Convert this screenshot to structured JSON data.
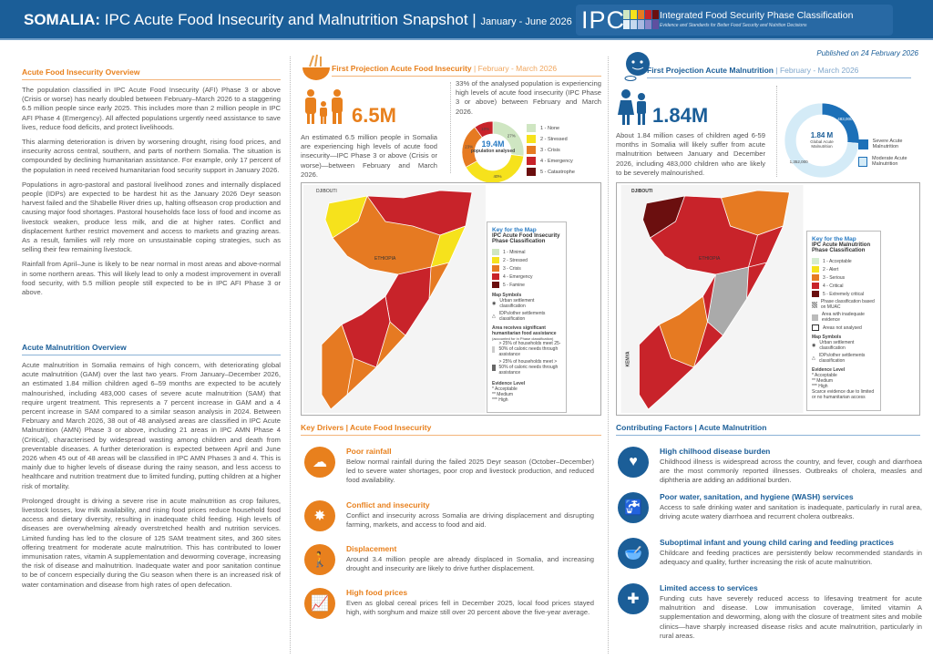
{
  "header": {
    "country": "SOMALIA:",
    "title": "IPC Acute Food Insecurity and Malnutrition Snapshot",
    "period": "January - June 2026",
    "logo_text": "IPC",
    "logo_title": "Integrated Food Security Phase Classification",
    "logo_subtitle": "Evidence and Standards for Better Food Security and Nutrition Decisions",
    "published": "Published on 24 February 2026",
    "colors": {
      "banner": "#1b5e98",
      "accent_orange": "#e8801d",
      "accent_blue": "#1b5e98"
    }
  },
  "afi_overview": {
    "heading": "Acute Food Insecurity Overview",
    "paragraphs": [
      "The population classified in IPC Acute Food Insecurity (AFI) Phase 3 or above (Crisis or worse) has nearly doubled between February–March 2026 to a staggering 6.5 million people since early 2025. This includes more than 2 million people in IPC AFI Phase 4 (Emergency). All affected populations urgently need assistance to save lives, reduce food deficits, and protect livelihoods.",
      "This alarming deterioration is driven by worsening drought, rising food prices, and insecurity across central, southern, and parts of northern Somalia. The situation is compounded by declining humanitarian assistance. For example, only 17 percent of the population in need received humanitarian food security support in January 2026.",
      "Populations in agro-pastoral and pastoral livelihood zones and internally displaced people (IDPs) are expected to be hardest hit as the January 2026 Deyr season harvest failed and the Shabelle River dries up, halting offseason crop production and causing major food shortages. Pastoral households face loss of food and income as livestock weaken, produce less milk, and die at higher rates. Conflict and displacement further restrict movement and access to markets and grazing areas. As a result, families will rely more on unsustainable coping strategies, such as selling their few remaining livestock.",
      "Rainfall from April–June is likely to be near normal in most areas and above-normal in some northern areas. This will likely lead to only a modest improvement in overall food security, with 5.5 million people still expected to be in IPC AFI Phase 3 or above."
    ]
  },
  "amn_overview": {
    "heading": "Acute Malnutrition Overview",
    "paragraphs": [
      "Acute malnutrition in Somalia remains of high concern, with deteriorating global acute malnutrition (GAM) over the last two years. From January–December 2026, an estimated 1.84 million children aged 6–59 months are expected to be acutely malnourished, including 483,000 cases of severe acute malnutrition (SAM) that require urgent treatment. This represents a 7 percent increase in GAM and a 4 percent increase in SAM compared to a similar season analysis in 2024. Between February and March 2026, 38 out of 48 analysed areas are classified in IPC Acute Malnutrition (AMN) Phase 3 or above, including 21 areas in IPC AMN Phase 4 (Critical), characterised by widespread wasting among children and death from preventable diseases. A further deterioration is expected between April and June 2026 when 45 out of 48 areas will be classified in IPC AMN Phases 3 and 4. This is mainly due to higher levels of disease during the rainy season, and less access to healthcare and nutrition treatment due to limited funding, putting children at a higher risk of mortality.",
      "Prolonged drought is driving a severe rise in acute malnutrition as crop failures, livestock losses, low milk availability, and rising food prices reduce household food access and dietary diversity, resulting in inadequate child feeding. High levels of diseases are overwhelming already overstretched health and nutrition services. Limited funding has led to the closure of 125 SAM treatment sites, and 360 sites offering treatment for moderate acute malnutrition. This has contributed to lower immunisation rates, vitamin A supplementation and deworming coverage, increasing the risk of disease and malnutrition. Inadequate water and poor sanitation continue to be of concern especially during the Gu season when there is an increased risk of water contamination and disease from high rates of open defecation."
    ]
  },
  "afi_projection": {
    "heading": "First Projection Acute Food Insecurity",
    "period": "February - March 2026",
    "figure": "6.5M",
    "text": "An estimated 6.5 million people in Somalia are experiencing high levels of acute food insecurity—IPC Phase 3 or above (Crisis or worse)—between February and March 2026.",
    "share_text": "33% of the analysed population is experiencing high levels of acute food insecurity (IPC Phase 3 or above) between February and March 2026.",
    "donut_center": "19.4M",
    "donut_center_sub": "population analysed",
    "phases": [
      {
        "label": "1 - None",
        "value": 27,
        "pct": "27%",
        "color": "#cfe6c2"
      },
      {
        "label": "2 - Stressed",
        "value": 40,
        "pct": "40%",
        "color": "#f6e21c"
      },
      {
        "label": "3 - Crisis",
        "value": 23,
        "pct": "23%",
        "color": "#e67a22"
      },
      {
        "label": "4 - Emergency",
        "value": 10,
        "pct": "10%",
        "color": "#c8232a"
      },
      {
        "label": "5 - Catastrophe",
        "value": 0,
        "pct": "",
        "color": "#6b0f0f"
      }
    ],
    "map_key": {
      "title": "Key for the Map",
      "subtitle": "IPC Acute Food Insecurity Phase Classification",
      "phases": [
        "1 - Minimal",
        "2 - Stressed",
        "3 - Crisis",
        "4 - Emergency",
        "5 - Famine"
      ],
      "symbols_title": "Map Symbols",
      "symbols": [
        "Urban settlement classification",
        "IDPs/other settlements classification"
      ],
      "assist_title": "Area receives significant humanitarian food assistance",
      "assist_sub": "(accounted for in Phase classification)",
      "assist": [
        "> 25% of households meet 25-50% of caloric needs through assistance",
        "> 25% of households meet > 50% of caloric needs through assistance"
      ],
      "evidence_title": "Evidence Level",
      "evidence": [
        "* Acceptable",
        "** Medium",
        "*** High"
      ]
    },
    "map_labels": [
      "DJIBOUTI",
      "ETHIOPIA",
      "KENYA"
    ]
  },
  "amn_projection": {
    "heading": "First Projection Acute Malnutrition",
    "period": "February - March 2026",
    "figure": "1.84M",
    "text": "About 1.84 million cases of children aged 6-59 months in Somalia will likely suffer from acute malnutrition between January and December 2026, including 483,000 children who are likely to be severely malnourished.",
    "donut_center": "1.84 M",
    "donut_center_sub": "Global Acute Malnutrition",
    "segments": [
      {
        "label": "Severe Acute Malnutrition",
        "value": 483000,
        "display": "483,000",
        "color": "#1c70b8"
      },
      {
        "label": "Moderate Acute Malnutrition",
        "value": 1352000,
        "display": "1,352,000",
        "color": "#d4ebf7"
      }
    ],
    "map_key": {
      "title": "Key for the Map",
      "subtitle": "IPC Acute Malnutrition Phase Classification",
      "phases": [
        "1 - Acceptable",
        "2 - Alert",
        "3 - Serious",
        "4 - Critical",
        "5 - Extremely critical"
      ],
      "extra": [
        "Phase classification based on MUAC",
        "Area with inadequate evidence",
        "Areas not analysed"
      ],
      "symbols_title": "Map Symbols",
      "symbols": [
        "Urban settlement classification",
        "IDPs/other settlements classification"
      ],
      "evidence_title": "Evidence Level",
      "evidence": [
        "* Acceptable",
        "** Medium",
        "*** High",
        "Scarce evidence due to limited or no humanitarian access"
      ]
    },
    "map_labels": [
      "DJIBOUTI",
      "ETHIOPIA",
      "KENYA"
    ]
  },
  "key_drivers": {
    "heading": "Key Drivers | Acute Food Insecurity",
    "items": [
      {
        "title": "Poor rainfall",
        "text": "Below normal rainfall during the failed 2025 Deyr season (October–December) led to severe water shortages, poor crop and livestock production, and reduced food availability.",
        "icon": "rain-cloud-icon"
      },
      {
        "title": "Conflict and insecurity",
        "text": "Conflict and insecurity across Somalia are driving displacement and disrupting farming, markets, and access to food and aid.",
        "icon": "explosion-icon"
      },
      {
        "title": "Displacement",
        "text": "Around 3.4 million people are already displaced in Somalia, and increasing drought and insecurity are likely to drive further displacement.",
        "icon": "walking-person-icon"
      },
      {
        "title": "High food prices",
        "text": "Even as global cereal prices fell in December 2025, local food prices stayed high, with sorghum and maize still over 20 percent above the five-year average.",
        "icon": "rising-chart-icon"
      }
    ]
  },
  "contributing": {
    "heading": "Contributing Factors | Acute Malnutrition",
    "items": [
      {
        "title": "High chilhood disease burden",
        "text": "Childhood illness is widespread across the country, and fever, cough and diarrhoea are the most commonly reported illnesses. Outbreaks of cholera, measles and diphtheria are adding an additional burden.",
        "icon": "heart-pulse-icon"
      },
      {
        "title": "Poor water, sanitation, and hygiene (WASH) services",
        "text": "Access to safe drinking water and sanitation is inadequate, particularly in rural area, driving acute watery diarrhoea and recurrent cholera outbreaks.",
        "icon": "water-tap-icon"
      },
      {
        "title": "Suboptimal infant and young child caring and feeding practices",
        "text": "Childcare and feeding practices are persistently below recommended standards in adequacy and quality, further increasing the risk of acute malnutrition.",
        "icon": "bowl-spoon-icon"
      },
      {
        "title": "Limited access to services",
        "text": "Funding cuts have severely reduced access to lifesaving treatment for acute malnutrition and disease. Low immunisation coverage, limited vitamin A supplementation and deworming, along with the closure of treatment sites and mobile clinics—have sharply increased disease risks and acute malnutrition, particularly in rural areas.",
        "icon": "medical-kit-icon"
      }
    ]
  }
}
